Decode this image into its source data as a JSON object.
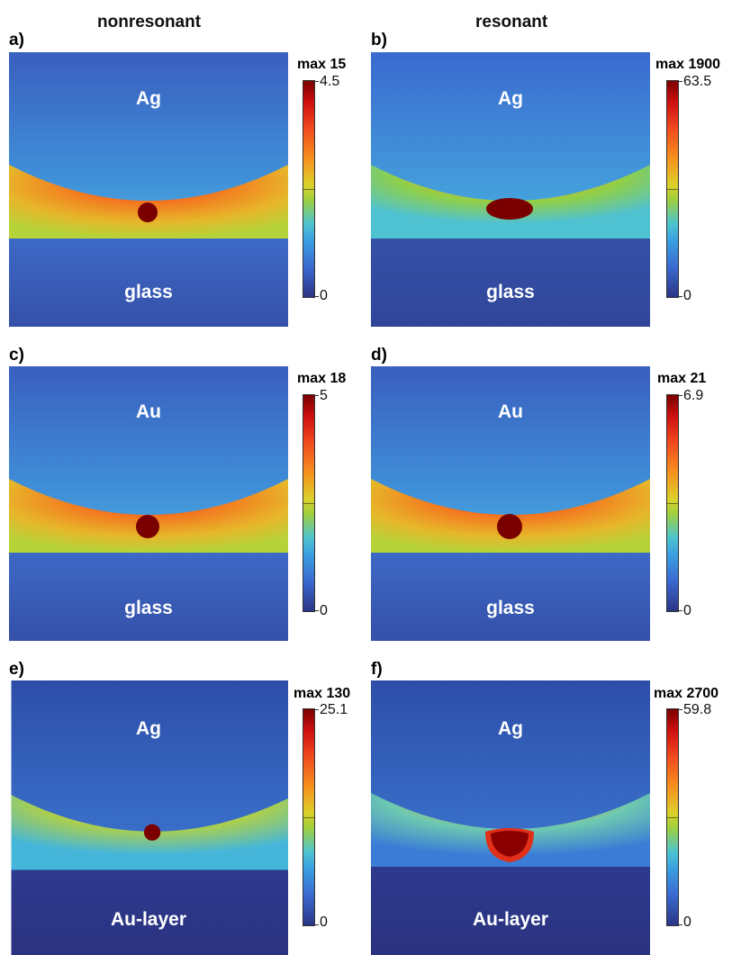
{
  "column_headers": {
    "left": "nonresonant",
    "right": "resonant"
  },
  "panels": [
    {
      "id": "a",
      "label": "a)",
      "top_material": "Ag",
      "bottom_material": "glass",
      "max_label": "max 15",
      "cb_max": "4.5",
      "cb_min": "0"
    },
    {
      "id": "b",
      "label": "b)",
      "top_material": "Ag",
      "bottom_material": "glass",
      "max_label": "max 1900",
      "cb_max": "63.5",
      "cb_min": "0"
    },
    {
      "id": "c",
      "label": "c)",
      "top_material": "Au",
      "bottom_material": "glass",
      "max_label": "max 18",
      "cb_max": "5",
      "cb_min": "0"
    },
    {
      "id": "d",
      "label": "d)",
      "top_material": "Au",
      "bottom_material": "glass",
      "max_label": "max 21",
      "cb_max": "6.9",
      "cb_min": "0"
    },
    {
      "id": "e",
      "label": "e)",
      "top_material": "Ag",
      "bottom_material": "Au-layer",
      "max_label": "max 130",
      "cb_max": "25.1",
      "cb_min": "0"
    },
    {
      "id": "f",
      "label": "f)",
      "top_material": "Ag",
      "bottom_material": "Au-layer",
      "max_label": "max 2700",
      "cb_max": "59.8",
      "cb_min": "0"
    }
  ],
  "colors": {
    "colormap": [
      "#2b3585",
      "#3a6ad0",
      "#3a9ee0",
      "#4ec4cf",
      "#9ecf3e",
      "#dcd02a",
      "#f6921e",
      "#f04a1e",
      "#d01010",
      "#7a0000"
    ]
  }
}
